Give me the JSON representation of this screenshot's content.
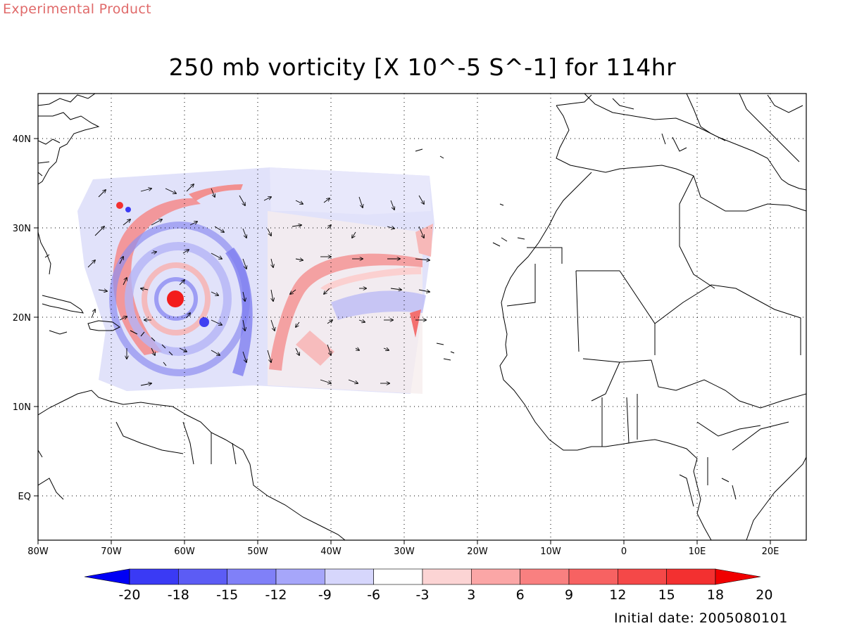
{
  "header": {
    "experimental": "Experimental Product",
    "title": "250 mb vorticity [X 10^-5 S^-1] for 114hr"
  },
  "footer": {
    "initial_date": "Initial date: 2005080101"
  },
  "map": {
    "lon_range": [
      -80,
      25
    ],
    "lat_range": [
      -6,
      45
    ],
    "lon_ticks": [
      {
        "value": -80,
        "label": "80W"
      },
      {
        "value": -70,
        "label": "70W"
      },
      {
        "value": -60,
        "label": "60W"
      },
      {
        "value": -50,
        "label": "50W"
      },
      {
        "value": -40,
        "label": "40W"
      },
      {
        "value": -30,
        "label": "30W"
      },
      {
        "value": -20,
        "label": "20W"
      },
      {
        "value": -10,
        "label": "10W"
      },
      {
        "value": 0,
        "label": "0"
      },
      {
        "value": 10,
        "label": "10E"
      },
      {
        "value": 20,
        "label": "20E"
      }
    ],
    "lat_ticks": [
      {
        "value": 40,
        "label": "40N"
      },
      {
        "value": 30,
        "label": "30N"
      },
      {
        "value": 20,
        "label": "20N"
      },
      {
        "value": 10,
        "label": "10N"
      },
      {
        "value": 0,
        "label": "EQ"
      }
    ],
    "grid": "dotted"
  },
  "colorbar": {
    "labels": [
      "-20",
      "-18",
      "-15",
      "-12",
      "-9",
      "-6",
      "-3",
      "3",
      "6",
      "9",
      "12",
      "15",
      "18",
      "20"
    ],
    "colors": [
      "#0000f5",
      "#3a3af5",
      "#5c5cf5",
      "#8080f8",
      "#a6a6fa",
      "#d6d6fc",
      "#ffffff",
      "#fcd4d4",
      "#fba6a6",
      "#f98080",
      "#f76262",
      "#f54848",
      "#f33030",
      "#f00000"
    ]
  }
}
